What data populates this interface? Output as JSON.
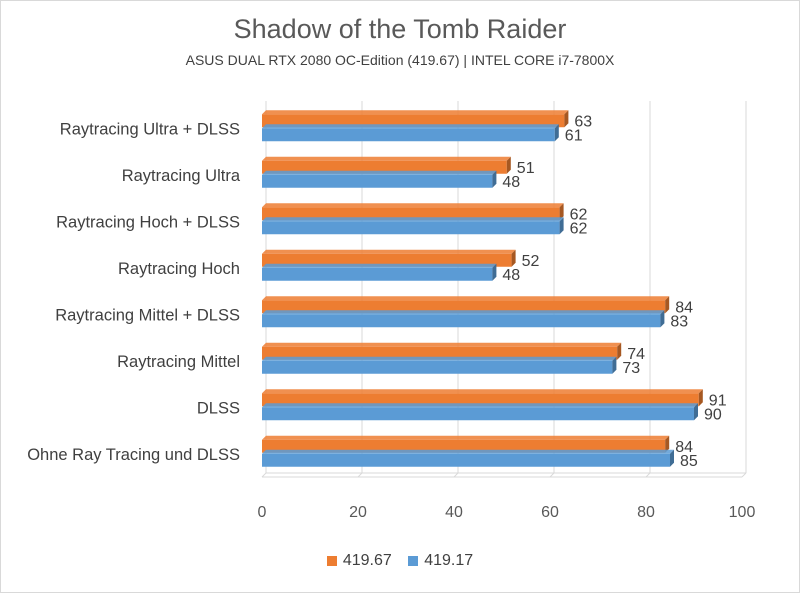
{
  "chart_data": {
    "type": "bar",
    "orientation": "horizontal",
    "title": "Shadow of the Tomb Raider",
    "subtitle": "ASUS DUAL RTX 2080 OC-Edition (419.67) | INTEL CORE i7-7800X",
    "categories": [
      "Raytracing Ultra + DLSS",
      "Raytracing Ultra",
      "Raytracing Hoch + DLSS",
      "Raytracing Hoch",
      "Raytracing Mittel + DLSS",
      "Raytracing Mittel ",
      "DLSS",
      "Ohne Ray Tracing und DLSS"
    ],
    "series": [
      {
        "name": "419.67",
        "color": "#ed7d31",
        "values": [
          63,
          51,
          62,
          52,
          84,
          74,
          91,
          84
        ]
      },
      {
        "name": "419.17",
        "color": "#5b9bd5",
        "values": [
          61,
          48,
          62,
          48,
          83,
          73,
          90,
          85
        ]
      }
    ],
    "xlim": [
      0,
      100
    ],
    "xticks": [
      0,
      20,
      40,
      60,
      80,
      100
    ],
    "grid": true,
    "legend_position": "bottom"
  },
  "legend": {
    "items": [
      {
        "label": "419.67",
        "color": "#ed7d31"
      },
      {
        "label": "419.17",
        "color": "#5b9bd5"
      }
    ]
  }
}
